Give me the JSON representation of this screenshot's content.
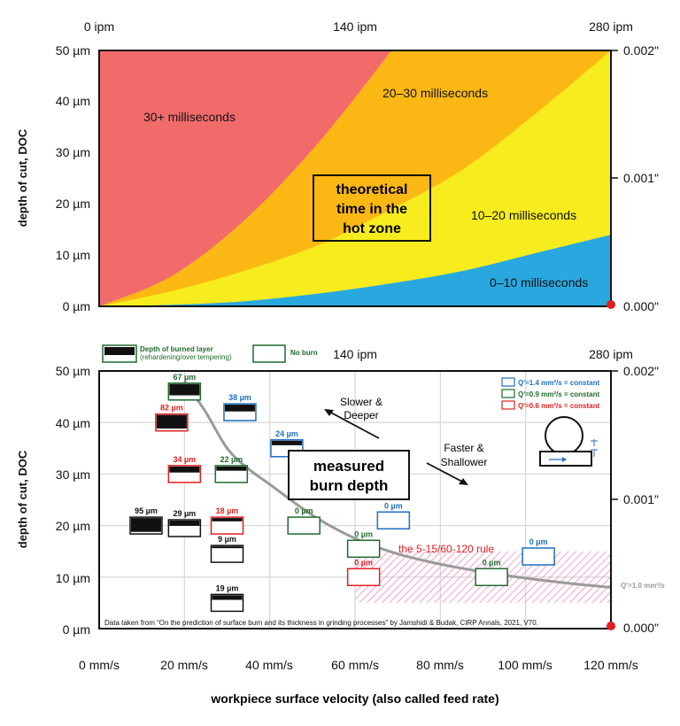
{
  "chart_data": [
    {
      "type": "area",
      "title": "theoretical time in the hot zone",
      "title_lines": [
        "theoretical",
        "time in the",
        "hot zone"
      ],
      "ylabel": "depth of cut, DOC",
      "ylim": [
        0,
        50
      ],
      "xlim": [
        0,
        280
      ],
      "y_ticks": [
        "0 µm",
        "10 µm",
        "20 µm",
        "30 µm",
        "40 µm",
        "50 µm"
      ],
      "y_ticks_right": [
        "0.000\"",
        "0.001\"",
        "0.002\""
      ],
      "x_ticks_top": [
        "0 ipm",
        "140 ipm",
        "280 ipm"
      ],
      "zones": [
        {
          "name": "30+ milliseconds",
          "color": "#f26b6b"
        },
        {
          "name": "20–30 milliseconds",
          "color": "#fbb814"
        },
        {
          "name": "10–20 milliseconds",
          "color": "#f7ec1e"
        },
        {
          "name": "0–10 milliseconds",
          "color": "#29a8e0"
        }
      ],
      "boundaries_um_at_x": {
        "x_ipm": [
          0,
          40,
          80,
          120,
          160,
          200,
          240,
          280
        ],
        "30ms": [
          0,
          6,
          17,
          32,
          50,
          null,
          null,
          null
        ],
        "20ms": [
          0,
          3,
          7,
          12,
          19,
          27,
          38,
          50
        ],
        "10ms": [
          0,
          0.3,
          1,
          2.5,
          4.5,
          7,
          10.5,
          14
        ]
      }
    },
    {
      "type": "scatter",
      "title": "measured burn depth",
      "title_lines": [
        "measured",
        "burn depth"
      ],
      "xlabel": "workpiece surface velocity (also called feed rate)",
      "ylabel": "depth of cut, DOC",
      "xlim": [
        0,
        120
      ],
      "ylim": [
        0,
        50
      ],
      "x_ticks": [
        "0 mm/s",
        "20 mm/s",
        "40 mm/s",
        "60 mm/s",
        "80 mm/s",
        "100 mm/s",
        "120 mm/s"
      ],
      "y_ticks": [
        "0 µm",
        "10 µm",
        "20 µm",
        "30 µm",
        "40 µm",
        "50 µm"
      ],
      "y_ticks_right": [
        "0.000\"",
        "0.001\"",
        "0.002\""
      ],
      "x_ticks_top": [
        "140 ipm",
        "280 ipm"
      ],
      "legend_top": {
        "burned": "Depth of burned layer",
        "burned_sub": "(rehardening/over tempering)",
        "noburn": "No burn"
      },
      "legend_q": [
        {
          "label": "Q'=1.4 mm²/s = constant",
          "color": "#1f6fc0"
        },
        {
          "label": "Q'=0.9 mm²/s = constant",
          "color": "#1f6b2e"
        },
        {
          "label": "Q'=0.6 mm²/s = constant",
          "color": "#e02020"
        }
      ],
      "points": [
        {
          "x": 20,
          "y": 46,
          "label": "67 µm",
          "color": "#1f6b2e",
          "burn": 0.75
        },
        {
          "x": 17,
          "y": 40,
          "label": "82 µm",
          "color": "#e02020",
          "burn": 0.9
        },
        {
          "x": 33,
          "y": 42,
          "label": "38 µm",
          "color": "#1f6fc0",
          "burn": 0.45
        },
        {
          "x": 44,
          "y": 35,
          "label": "24 µm",
          "color": "#1f6fc0",
          "burn": 0.3
        },
        {
          "x": 20,
          "y": 30,
          "label": "34 µm",
          "color": "#e02020",
          "burn": 0.4
        },
        {
          "x": 31,
          "y": 30,
          "label": "22 µm",
          "color": "#1f6b2e",
          "burn": 0.28
        },
        {
          "x": 11,
          "y": 20,
          "label": "95 µm",
          "color": "#111111",
          "burn": 0.92
        },
        {
          "x": 20,
          "y": 19.5,
          "label": "29 µm",
          "color": "#111111",
          "burn": 0.35
        },
        {
          "x": 30,
          "y": 20,
          "label": "18 µm",
          "color": "#e02020",
          "burn": 0.22
        },
        {
          "x": 48,
          "y": 20,
          "label": "0 µm",
          "color": "#1f6b2e",
          "burn": 0
        },
        {
          "x": 69,
          "y": 21,
          "label": "0 µm",
          "color": "#1f6fc0",
          "burn": 0
        },
        {
          "x": 30,
          "y": 14.5,
          "label": "9 µm",
          "color": "#111111",
          "burn": 0.12
        },
        {
          "x": 62,
          "y": 15.5,
          "label": "0 µm",
          "color": "#1f6b2e",
          "burn": 0
        },
        {
          "x": 62,
          "y": 10,
          "label": "0 µm",
          "color": "#e02020",
          "burn": 0
        },
        {
          "x": 103,
          "y": 14,
          "label": "0 µm",
          "color": "#1f6fc0",
          "burn": 0
        },
        {
          "x": 92,
          "y": 10,
          "label": "0 µm",
          "color": "#1f6b2e",
          "burn": 0
        },
        {
          "x": 30,
          "y": 5,
          "label": "19 µm",
          "color": "#111111",
          "burn": 0.3
        }
      ],
      "curve": {
        "label": "Q'=1.0 mm²/s",
        "x": [
          20,
          25,
          30,
          35,
          40,
          50,
          60,
          70,
          80,
          90,
          100,
          110,
          120
        ],
        "y": [
          48,
          42,
          35,
          31,
          28,
          22,
          17.5,
          14.5,
          12.5,
          11,
          9.8,
          8.8,
          8
        ]
      },
      "rule": {
        "label": "the 5-15/60-120 rule",
        "x": [
          60,
          120
        ],
        "y": [
          5,
          15
        ]
      },
      "annotations": [
        {
          "text": [
            "Slower &",
            "Deeper"
          ]
        },
        {
          "text": [
            "Faster &",
            "Shallower"
          ]
        }
      ],
      "source_note": "Data taken from “On the prediction of surface burn and its thickness in grinding processes” by Jamshidi & Budak, CIRP Annals, 2021, V70."
    }
  ]
}
